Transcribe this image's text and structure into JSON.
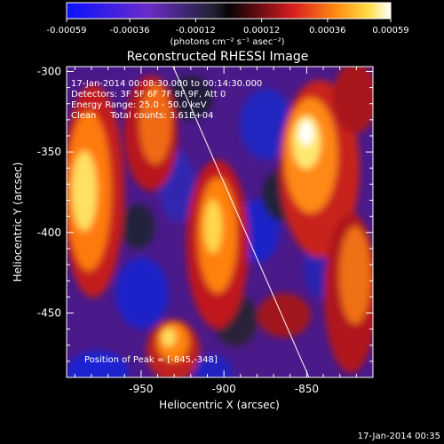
{
  "colorbar": {
    "ticks": [
      "-0.00059",
      "-0.00036",
      "-0.00012",
      "0.00012",
      "0.00036",
      "0.00059"
    ],
    "unit_label": "(photons cm⁻² s⁻¹ asec⁻²)"
  },
  "title": "Reconstructed RHESSI Image",
  "info": {
    "time": "17-Jan-2014 00:08:30.000 to 00:14:30.000",
    "detectors": "Detectors: 3F 5F 6F 7F 8F 9F, Att 0",
    "energy": "Energy Range: 25.0 - 50.0 keV",
    "clean": "Clean     Total counts: 3.61E+04"
  },
  "peak": "Position of Peak = [-845,-348]",
  "axes": {
    "xlabel": "Heliocentric X (arcsec)",
    "ylabel": "Heliocentric Y (arcsec)",
    "xticks": [
      "-950",
      "-900",
      "-850"
    ],
    "yticks": [
      "-300",
      "-350",
      "-400",
      "-450"
    ],
    "xrange": [
      -995,
      -810
    ],
    "yrange": [
      -490,
      -297
    ]
  },
  "timestamp": "17-Jan-2014 00:35",
  "colors": {
    "background": "#000000",
    "text": "#ffffff"
  }
}
